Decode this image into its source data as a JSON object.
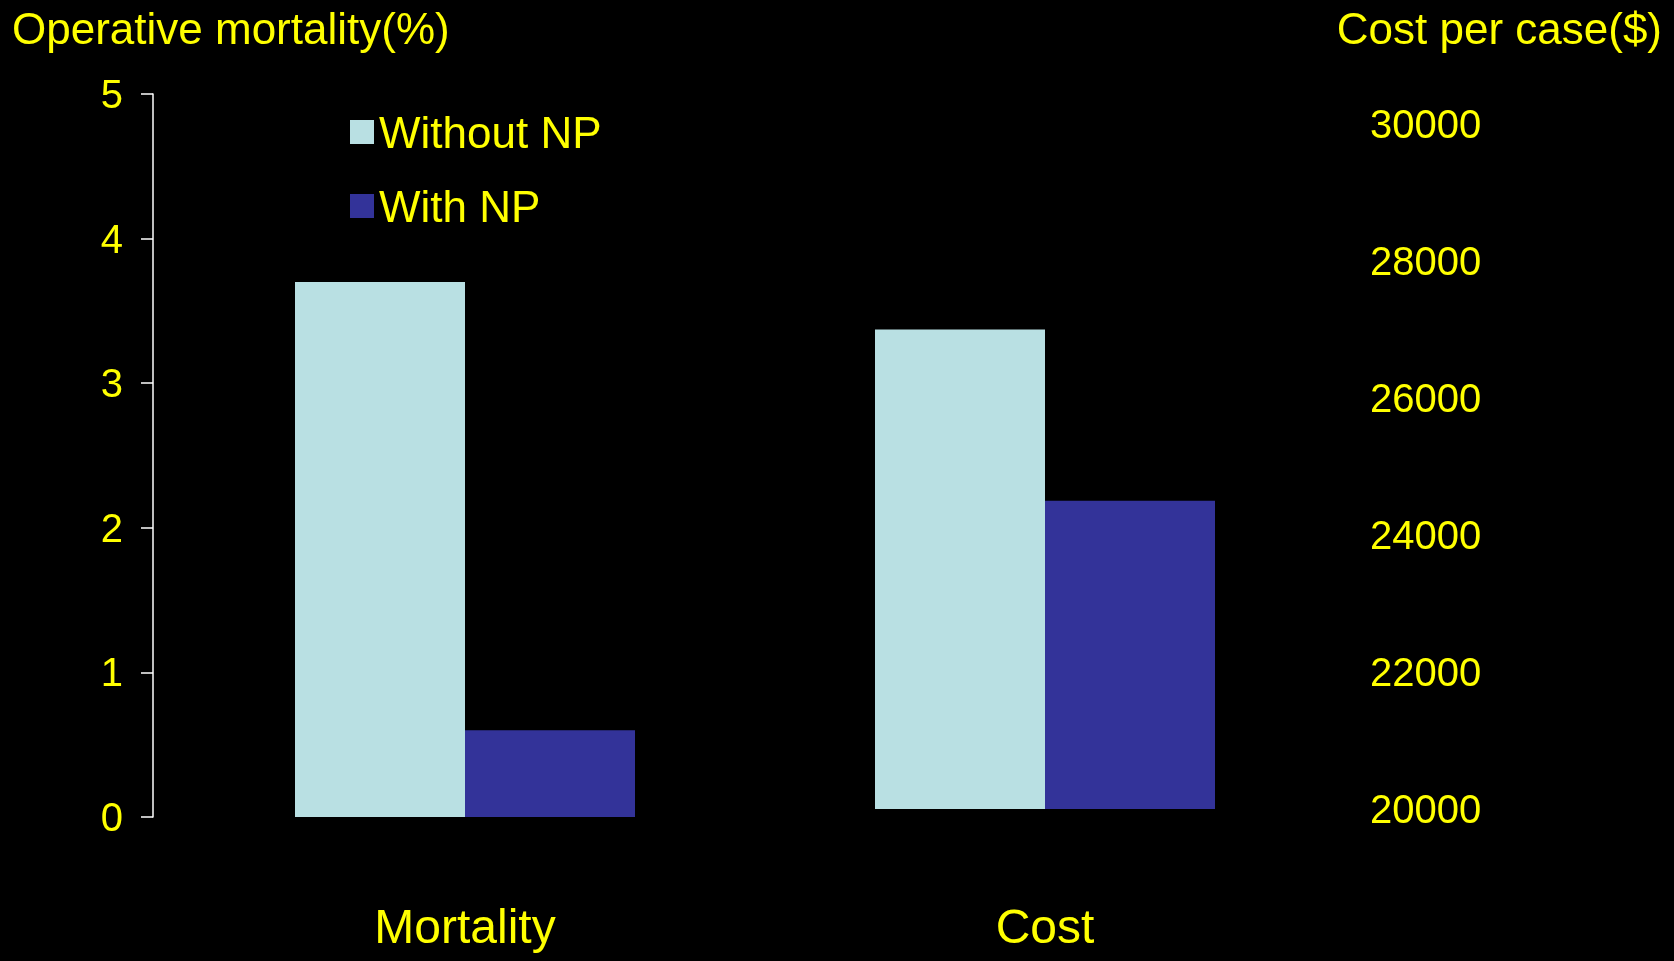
{
  "chart_data": {
    "type": "bar",
    "ylabel": "Operative mortality(%)",
    "y2label": "Cost per case($)",
    "categories": [
      "Mortality",
      "Cost"
    ],
    "series": [
      {
        "name": "Without NP",
        "color": "#b9e0e3",
        "values": [
          3.7,
          null
        ],
        "axis": "y"
      },
      {
        "name": "With NP",
        "color": "#333399",
        "values": [
          0.6,
          null
        ],
        "axis": "y"
      },
      {
        "color": "#b9e0e3",
        "values": [
          null,
          27000
        ],
        "axis": "y2"
      },
      {
        "color": "#333399",
        "values": [
          null,
          24500
        ],
        "axis": "y2"
      }
    ],
    "ylim": [
      0,
      5
    ],
    "yticks": [
      0,
      1,
      2,
      3,
      4,
      5
    ],
    "y2lim": [
      20000,
      30000
    ],
    "y2ticks": [
      20000,
      22000,
      24000,
      26000,
      28000,
      30000
    ],
    "grid": false,
    "legend": "top left"
  }
}
